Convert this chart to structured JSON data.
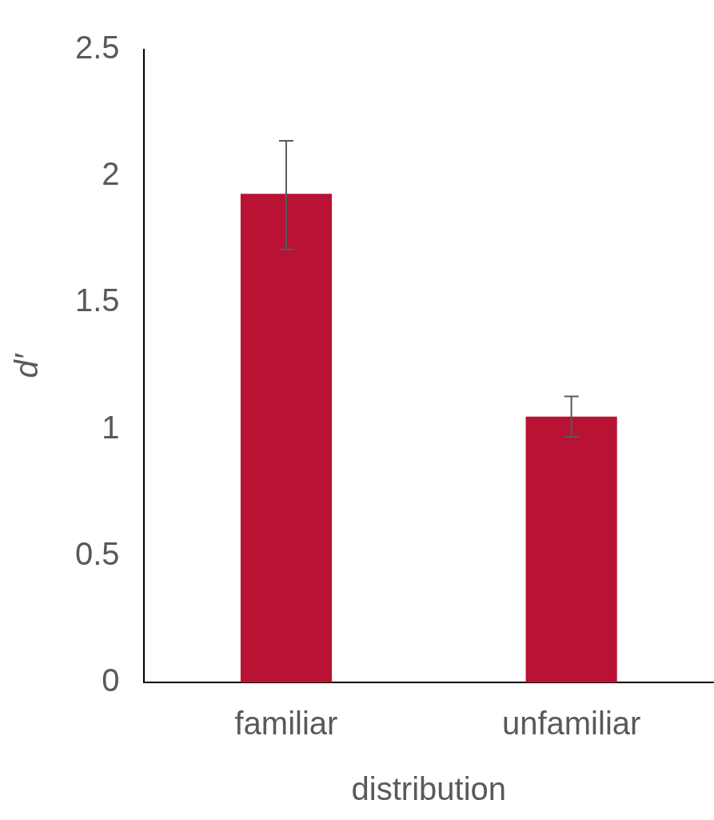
{
  "chart_data": {
    "type": "bar",
    "xlabel": "distribution",
    "ylabel": "d′",
    "categories": [
      "familiar",
      "unfamiliar"
    ],
    "values": [
      1.93,
      1.05
    ],
    "errors": [
      [
        1.71,
        2.14
      ],
      [
        0.97,
        1.13
      ]
    ],
    "color": "#b91235",
    "ylim": [
      0,
      2.5
    ],
    "yticks": [
      0,
      0.5,
      1,
      1.5,
      2,
      2.5
    ],
    "grid": false,
    "legend": false
  }
}
